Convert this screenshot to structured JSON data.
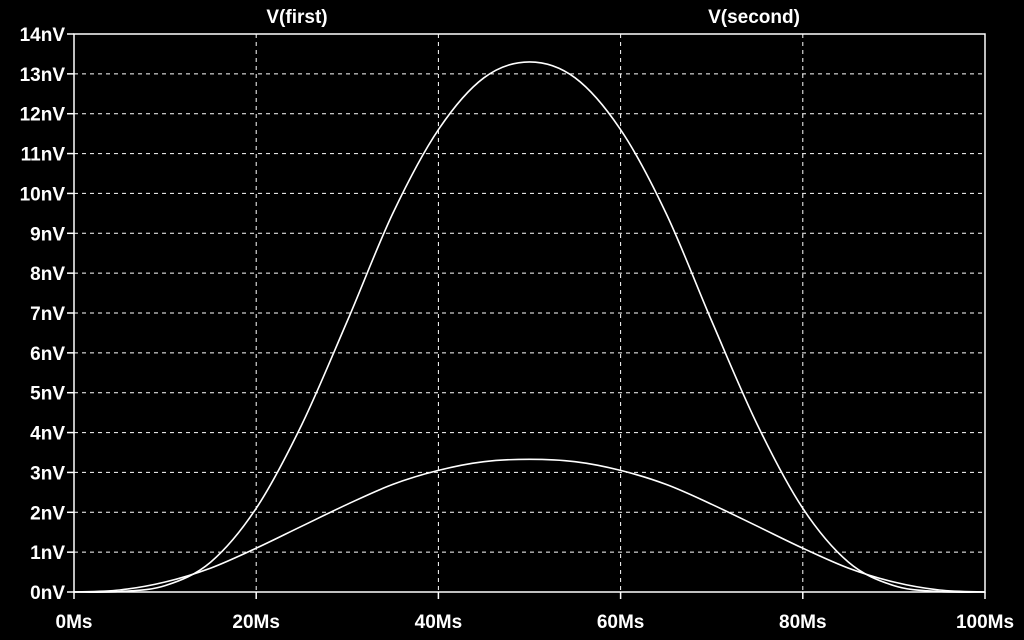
{
  "chart_data": {
    "type": "line",
    "title": "",
    "xlabel": "",
    "ylabel": "",
    "grid": true,
    "colors": {
      "background": "#000000",
      "trace": "#ffffff",
      "grid": "#ffffff",
      "text": "#ffffff"
    },
    "xlim": [
      0,
      100
    ],
    "ylim": [
      0,
      14
    ],
    "x_ticks": [
      {
        "value": 0,
        "label": "0Ms"
      },
      {
        "value": 20,
        "label": "20Ms"
      },
      {
        "value": 40,
        "label": "40Ms"
      },
      {
        "value": 60,
        "label": "60Ms"
      },
      {
        "value": 80,
        "label": "80Ms"
      },
      {
        "value": 100,
        "label": "100Ms"
      }
    ],
    "y_ticks": [
      {
        "value": 0,
        "label": "0nV"
      },
      {
        "value": 1,
        "label": "1nV"
      },
      {
        "value": 2,
        "label": "2nV"
      },
      {
        "value": 3,
        "label": "3nV"
      },
      {
        "value": 4,
        "label": "4nV"
      },
      {
        "value": 5,
        "label": "5nV"
      },
      {
        "value": 6,
        "label": "6nV"
      },
      {
        "value": 7,
        "label": "7nV"
      },
      {
        "value": 8,
        "label": "8nV"
      },
      {
        "value": 9,
        "label": "9nV"
      },
      {
        "value": 10,
        "label": "10nV"
      },
      {
        "value": 11,
        "label": "11nV"
      },
      {
        "value": 12,
        "label": "12nV"
      },
      {
        "value": 13,
        "label": "13nV"
      },
      {
        "value": 14,
        "label": "14nV"
      }
    ],
    "series": [
      {
        "name": "V(first)",
        "x": [
          0,
          5,
          10,
          15,
          20,
          25,
          30,
          35,
          40,
          45,
          50,
          55,
          60,
          65,
          70,
          75,
          80,
          85,
          90,
          95,
          100
        ],
        "values": [
          0,
          0.01,
          0.16,
          0.75,
          2.1,
          4.2,
          6.8,
          9.5,
          11.6,
          12.9,
          13.3,
          12.9,
          11.6,
          9.5,
          6.8,
          4.2,
          2.1,
          0.75,
          0.16,
          0.01,
          0
        ]
      },
      {
        "name": "V(second)",
        "x": [
          0,
          5,
          10,
          15,
          20,
          25,
          30,
          35,
          40,
          45,
          50,
          55,
          60,
          65,
          70,
          75,
          80,
          85,
          90,
          95,
          100
        ],
        "values": [
          0,
          0.05,
          0.25,
          0.6,
          1.1,
          1.65,
          2.2,
          2.7,
          3.05,
          3.27,
          3.33,
          3.27,
          3.05,
          2.7,
          2.2,
          1.65,
          1.1,
          0.6,
          0.25,
          0.05,
          0
        ]
      }
    ]
  }
}
